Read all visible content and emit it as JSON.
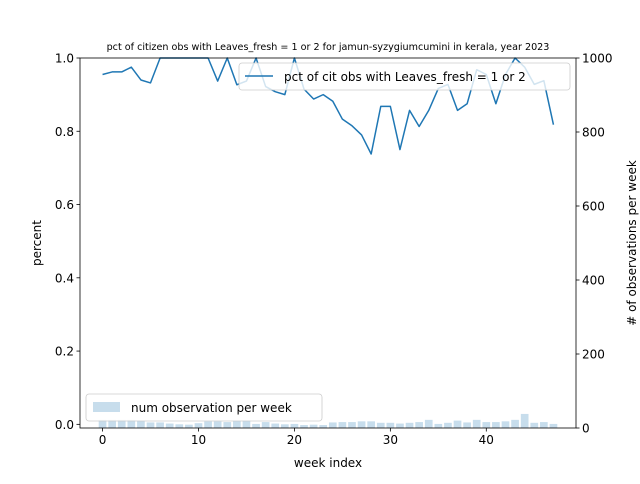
{
  "chart_data": {
    "type": "line",
    "title": "pct of citizen obs with Leaves_fresh = 1 or 2 for jamun-syzygiumcumini in kerala, year 2023",
    "xlabel": "week index",
    "ylabel": "percent",
    "y2label": "# of observations per week",
    "xlim": [
      -2.35,
      49.35
    ],
    "ylim": [
      -0.01,
      1.0
    ],
    "y2lim": [
      0,
      1000
    ],
    "xticks": [
      0,
      10,
      20,
      30,
      40
    ],
    "yticks": [
      0.0,
      0.2,
      0.4,
      0.6,
      0.8,
      1.0
    ],
    "yticklabels": [
      "0.0",
      "0.2",
      "0.4",
      "0.6",
      "0.8",
      "1.0"
    ],
    "y2ticks": [
      0,
      200,
      400,
      600,
      800,
      1000
    ],
    "grid": false,
    "colors": {
      "line": "#1f77b4",
      "bar": "#1f77b4",
      "bar_alpha": 0.25,
      "axis": "#000000"
    },
    "line_series": {
      "name": "pct of cit obs with Leaves_fresh = 1 or 2",
      "legend_position": "upper right",
      "x": [
        0,
        1,
        2,
        3,
        4,
        5,
        6,
        7,
        8,
        9,
        10,
        11,
        12,
        13,
        14,
        15,
        16,
        17,
        18,
        19,
        20,
        21,
        22,
        23,
        24,
        25,
        26,
        27,
        28,
        29,
        30,
        31,
        32,
        33,
        34,
        35,
        36,
        37,
        38,
        39,
        40,
        41,
        42,
        43,
        44,
        45,
        46,
        47
      ],
      "values": [
        0.955,
        0.962,
        0.962,
        0.975,
        0.94,
        0.932,
        1.0,
        1.0,
        1.0,
        1.0,
        1.0,
        1.0,
        0.937,
        1.0,
        0.927,
        0.937,
        1.0,
        0.922,
        0.908,
        0.9,
        1.0,
        0.915,
        0.888,
        0.9,
        0.882,
        0.833,
        0.815,
        0.79,
        0.738,
        0.868,
        0.868,
        0.75,
        0.857,
        0.813,
        0.857,
        0.917,
        0.928,
        0.857,
        0.875,
        0.968,
        0.955,
        0.875,
        0.955,
        1.0,
        0.975,
        0.928,
        0.938,
        0.818
      ]
    },
    "bar_series": {
      "name": "num observation per week",
      "legend_position": "lower left",
      "x": [
        0,
        1,
        2,
        3,
        4,
        5,
        6,
        7,
        8,
        9,
        10,
        11,
        12,
        13,
        14,
        15,
        16,
        17,
        18,
        19,
        20,
        21,
        22,
        23,
        24,
        25,
        26,
        27,
        28,
        29,
        30,
        31,
        32,
        33,
        34,
        35,
        36,
        37,
        38,
        39,
        40,
        41,
        42,
        43,
        44,
        45,
        46,
        47
      ],
      "values": [
        22,
        22,
        22,
        22,
        20,
        15,
        15,
        12,
        10,
        9,
        13,
        18,
        18,
        16,
        20,
        20,
        11,
        16,
        12,
        10,
        11,
        8,
        9,
        8,
        15,
        16,
        16,
        18,
        18,
        14,
        14,
        12,
        14,
        16,
        22,
        11,
        14,
        20,
        15,
        22,
        16,
        16,
        18,
        22,
        38,
        14,
        16,
        11
      ]
    }
  }
}
